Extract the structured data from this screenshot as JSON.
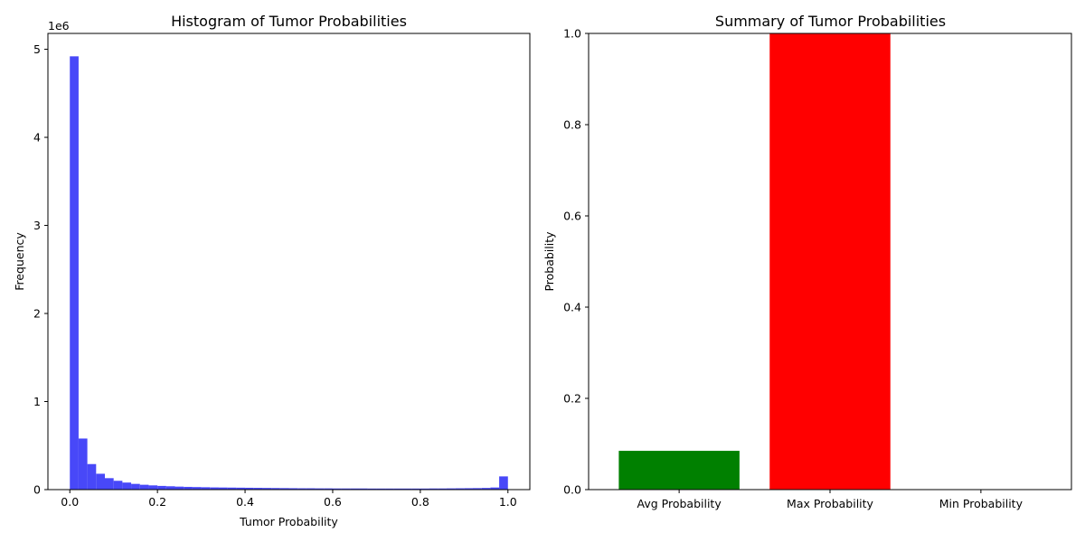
{
  "chart_data": [
    {
      "type": "bar",
      "title": "Histogram of Tumor Probabilities",
      "xlabel": "Tumor Probability",
      "ylabel": "Frequency",
      "y_offset_label": "1e6",
      "xlim": [
        -0.05,
        1.05
      ],
      "ylim": [
        0,
        5.18
      ],
      "xticks": [
        "0.0",
        "0.2",
        "0.4",
        "0.6",
        "0.8",
        "1.0"
      ],
      "yticks": [
        "0",
        "1",
        "2",
        "3",
        "4",
        "5"
      ],
      "bins": 50,
      "bin_range": [
        0,
        1
      ],
      "values_millions": [
        4.92,
        0.58,
        0.29,
        0.18,
        0.13,
        0.1,
        0.08,
        0.065,
        0.055,
        0.048,
        0.042,
        0.038,
        0.034,
        0.031,
        0.029,
        0.027,
        0.025,
        0.024,
        0.023,
        0.022,
        0.021,
        0.02,
        0.019,
        0.018,
        0.017,
        0.016,
        0.015,
        0.015,
        0.014,
        0.014,
        0.013,
        0.013,
        0.013,
        0.013,
        0.012,
        0.012,
        0.012,
        0.012,
        0.012,
        0.012,
        0.012,
        0.013,
        0.013,
        0.014,
        0.015,
        0.016,
        0.017,
        0.019,
        0.024,
        0.15
      ],
      "color": "#4848f8"
    },
    {
      "type": "bar",
      "title": "Summary of Tumor Probabilities",
      "xlabel": "",
      "ylabel": "Probability",
      "categories": [
        "Avg Probability",
        "Max Probability",
        "Min Probability"
      ],
      "values": [
        0.085,
        1.0,
        0.0
      ],
      "colors": [
        "#008000",
        "#ff0000",
        "#0000ff"
      ],
      "ylim": [
        0,
        1
      ],
      "yticks": [
        "0.0",
        "0.2",
        "0.4",
        "0.6",
        "0.8",
        "1.0"
      ]
    }
  ]
}
